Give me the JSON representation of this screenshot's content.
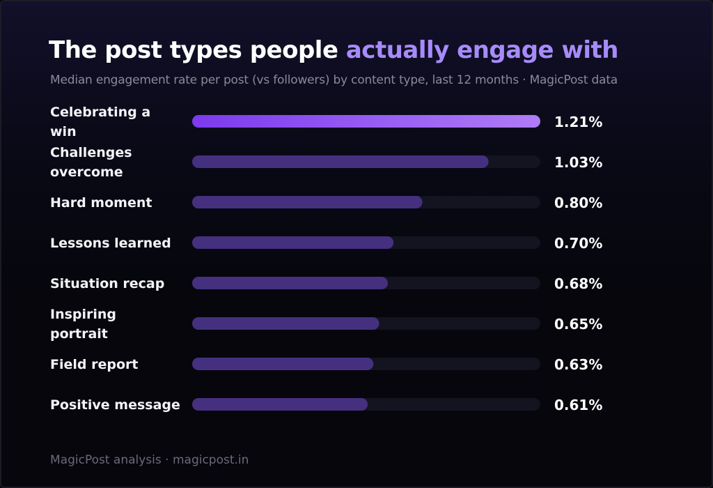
{
  "title_main": "The post types people",
  "title_accent": "actually engage with",
  "subtitle": "Median engagement rate per post (vs followers) by content type, last 12 months · MagicPost data",
  "footer": "MagicPost analysis · magicpost.in",
  "colors": {
    "accent_text": "#a78bfa",
    "top_bar_start": "#7c3aed",
    "top_bar_end": "#b07cf7",
    "bar": "#45307f",
    "track": "#13141f"
  },
  "chart_data": {
    "type": "bar",
    "orientation": "horizontal",
    "title": "The post types people actually engage with",
    "subtitle": "Median engagement rate per post (vs followers) by content type, last 12 months · MagicPost data",
    "categories": [
      "Celebrating a win",
      "Challenges overcome",
      "Hard moment",
      "Lessons learned",
      "Situation recap",
      "Inspiring portrait",
      "Field report",
      "Positive message"
    ],
    "values": [
      1.21,
      1.03,
      0.8,
      0.7,
      0.68,
      0.65,
      0.63,
      0.61
    ],
    "value_labels": [
      "1.21%",
      "1.03%",
      "0.80%",
      "0.70%",
      "0.68%",
      "0.65%",
      "0.63%",
      "0.61%"
    ],
    "unit": "%",
    "xlim": [
      0,
      1.21
    ],
    "grid": false,
    "legend": "none",
    "highlight_index": 0
  }
}
